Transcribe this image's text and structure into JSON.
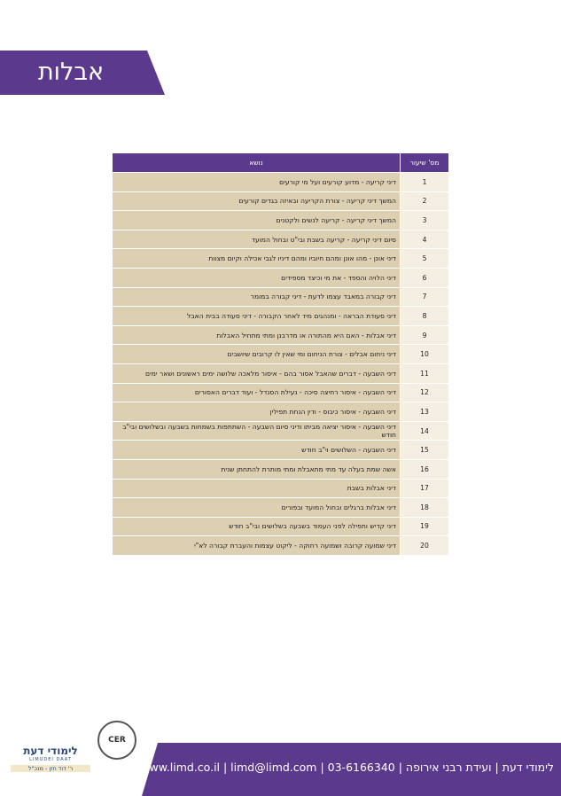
{
  "header": {
    "title": "אבלות"
  },
  "table": {
    "columns": [
      "מס' שיעור",
      "נושא"
    ],
    "rows": [
      [
        "1",
        "דיני קריעה - מדוע קורעים ועל מי קורעים"
      ],
      [
        "2",
        "המשך דיני קריעה - צורת הקריעה ובאיזה בגדים קורעים"
      ],
      [
        "3",
        "המשך דיני קריעה - קריעה לנשים ולקטנים"
      ],
      [
        "4",
        "סיום דיני קריעה - קריעה בשבת ובי\"ט ובחול המועד"
      ],
      [
        "5",
        "דיני אונן - מהו אונן ומהם חיוביו ומהם דיניו לגבי אכילה וקיום מצוות"
      ],
      [
        "6",
        "דיני הלויה והספד - את מי וכיצד מספידים"
      ],
      [
        "7",
        "דיני קבורה במאבד עצמו לדעת - דיני קבורה במומר"
      ],
      [
        "8",
        "דיני סעודת הבראה - ומנהגים מיד לאחר הקבורה - דיני סעודה בבית האבל"
      ],
      [
        "9",
        "דיני אבלות - האם היא מהתורה או מדרבנן ומתי מתחיל האבלות"
      ],
      [
        "10",
        "דיני ניחום אבלים - צורת הניחום ומי שאין לו קרובים שיושבים"
      ],
      [
        "11",
        "דיני השבעה - דברים שהאבל אסור בהם - איסור מלאכה שלושה ימים ראשונים ושאר ימים"
      ],
      [
        "12",
        "דיני השבעה - איסור רחיצה סיכה - נעילת הסנדל - ועוד דברים האסורים"
      ],
      [
        "13",
        "דיני השבעה - איסור כיבוס - ודין הנחת תפילין"
      ],
      [
        "14",
        "דיני השבעה - איסור יציאה מביתו ודיני סיום השבעה - השתתפות בשמחות בשבעה ובשלושים ובי\"ב חודש"
      ],
      [
        "15",
        "דיני השבעה - השלושים וי\"ב חודש"
      ],
      [
        "16",
        "אשה שמת בעלה עד מתי מתאבלת ומתי מותרת להתחתן שנית"
      ],
      [
        "17",
        "דיני אבלות בשבת"
      ],
      [
        "18",
        "דיני אבלות ברגלים ובחול המועד ובפורים"
      ],
      [
        "19",
        "דיני קדיש ותפילה לפני העמוד בשבעה בשלושים ובי\"ב חודש"
      ],
      [
        "20",
        "דיני שמועה קרובה ושמועה רחוקה - ליקוט עצמות והעברת קבורה לא\"י"
      ]
    ]
  },
  "footer": {
    "contact": "לימודי דעת | ועידת רבני אירופה | 03-6166340 | www.limd.co.il | limd@limd.com",
    "logo_title": "לימודי דעת",
    "logo_latin": "LIMUDEI DAAT",
    "logo_director": "ר' דוד חזן - מנכ\"ל",
    "cer": "CER"
  }
}
